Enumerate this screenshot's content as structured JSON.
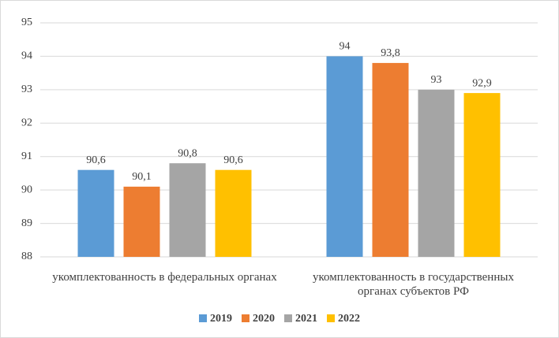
{
  "chart_data": {
    "type": "bar",
    "categories": [
      "укомплектованность в федеральных органах",
      "укомплектованность в государственных органах субъектов РФ"
    ],
    "series": [
      {
        "name": "2019",
        "color": "#5b9bd5",
        "values": [
          90.6,
          94
        ],
        "value_labels": [
          "90,6",
          "94"
        ]
      },
      {
        "name": "2020",
        "color": "#ed7d31",
        "values": [
          90.1,
          93.8
        ],
        "value_labels": [
          "90,1",
          "93,8"
        ]
      },
      {
        "name": "2021",
        "color": "#a5a5a5",
        "values": [
          90.8,
          93
        ],
        "value_labels": [
          "90,8",
          "93"
        ]
      },
      {
        "name": "2022",
        "color": "#ffc000",
        "values": [
          90.6,
          92.9
        ],
        "value_labels": [
          "90,6",
          "92,9"
        ]
      }
    ],
    "ylim": [
      88,
      95
    ],
    "yticks": [
      88,
      89,
      90,
      91,
      92,
      93,
      94,
      95
    ],
    "grid": true,
    "legend": "bottom"
  }
}
